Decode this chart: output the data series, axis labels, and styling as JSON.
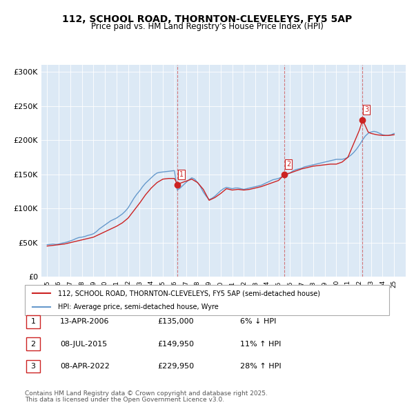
{
  "title_line1": "112, SCHOOL ROAD, THORNTON-CLEVELEYS, FY5 5AP",
  "title_line2": "Price paid vs. HM Land Registry's House Price Index (HPI)",
  "ylabel": "",
  "xlabel": "",
  "background_color": "#dce9f5",
  "plot_bg_color": "#dce9f5",
  "red_line_label": "112, SCHOOL ROAD, THORNTON-CLEVELEYS, FY5 5AP (semi-detached house)",
  "blue_line_label": "HPI: Average price, semi-detached house, Wyre",
  "transactions": [
    {
      "num": 1,
      "date": "13-APR-2006",
      "price": 135000,
      "pct": "6%",
      "dir": "↓",
      "x_year": 2006.28
    },
    {
      "num": 2,
      "date": "08-JUL-2015",
      "price": 149950,
      "pct": "11%",
      "dir": "↑",
      "x_year": 2015.52
    },
    {
      "num": 3,
      "date": "08-APR-2022",
      "price": 229950,
      "pct": "28%",
      "dir": "↑",
      "x_year": 2022.27
    }
  ],
  "footer_line1": "Contains HM Land Registry data © Crown copyright and database right 2025.",
  "footer_line2": "This data is licensed under the Open Government Licence v3.0.",
  "ylim": [
    0,
    310000
  ],
  "xlim": [
    1994.5,
    2026.0
  ],
  "yticks": [
    0,
    50000,
    100000,
    150000,
    200000,
    250000,
    300000
  ],
  "ytick_labels": [
    "£0",
    "£50K",
    "£100K",
    "£150K",
    "£200K",
    "£250K",
    "£300K"
  ],
  "hpi_data": {
    "years": [
      1995.0,
      1995.25,
      1995.5,
      1995.75,
      1996.0,
      1996.25,
      1996.5,
      1996.75,
      1997.0,
      1997.25,
      1997.5,
      1997.75,
      1998.0,
      1998.25,
      1998.5,
      1998.75,
      1999.0,
      1999.25,
      1999.5,
      1999.75,
      2000.0,
      2000.25,
      2000.5,
      2000.75,
      2001.0,
      2001.25,
      2001.5,
      2001.75,
      2002.0,
      2002.25,
      2002.5,
      2002.75,
      2003.0,
      2003.25,
      2003.5,
      2003.75,
      2004.0,
      2004.25,
      2004.5,
      2004.75,
      2005.0,
      2005.25,
      2005.5,
      2005.75,
      2006.0,
      2006.25,
      2006.5,
      2006.75,
      2007.0,
      2007.25,
      2007.5,
      2007.75,
      2008.0,
      2008.25,
      2008.5,
      2008.75,
      2009.0,
      2009.25,
      2009.5,
      2009.75,
      2010.0,
      2010.25,
      2010.5,
      2010.75,
      2011.0,
      2011.25,
      2011.5,
      2011.75,
      2012.0,
      2012.25,
      2012.5,
      2012.75,
      2013.0,
      2013.25,
      2013.5,
      2013.75,
      2014.0,
      2014.25,
      2014.5,
      2014.75,
      2015.0,
      2015.25,
      2015.5,
      2015.75,
      2016.0,
      2016.25,
      2016.5,
      2016.75,
      2017.0,
      2017.25,
      2017.5,
      2017.75,
      2018.0,
      2018.25,
      2018.5,
      2018.75,
      2019.0,
      2019.25,
      2019.5,
      2019.75,
      2020.0,
      2020.25,
      2020.5,
      2020.75,
      2021.0,
      2021.25,
      2021.5,
      2021.75,
      2022.0,
      2022.25,
      2022.5,
      2022.75,
      2023.0,
      2023.25,
      2023.5,
      2023.75,
      2024.0,
      2024.25,
      2024.5,
      2024.75,
      2025.0
    ],
    "values": [
      47000,
      47500,
      48000,
      47500,
      48000,
      49000,
      50000,
      51000,
      52500,
      54000,
      56000,
      57500,
      58000,
      59000,
      60500,
      61500,
      63000,
      66000,
      70000,
      73000,
      76000,
      79000,
      82000,
      84000,
      86000,
      89000,
      92000,
      96000,
      101000,
      108000,
      115000,
      121000,
      126000,
      132000,
      137000,
      141000,
      145000,
      149000,
      152000,
      153000,
      153500,
      154000,
      154500,
      155000,
      155500,
      127000,
      130000,
      134000,
      138000,
      142000,
      145000,
      143000,
      138000,
      132000,
      124000,
      118000,
      113000,
      115000,
      118000,
      122000,
      126000,
      129000,
      131000,
      130000,
      129000,
      130000,
      130000,
      129000,
      128000,
      129000,
      130000,
      131000,
      132000,
      133000,
      134000,
      136000,
      138000,
      140000,
      142000,
      143000,
      144000,
      146000,
      148000,
      150000,
      152000,
      155000,
      157000,
      158000,
      159000,
      161000,
      162000,
      163000,
      164000,
      165000,
      166000,
      167000,
      168000,
      169000,
      170000,
      171000,
      172000,
      172000,
      172000,
      173000,
      175000,
      178000,
      182000,
      187000,
      193000,
      200000,
      206000,
      210000,
      212000,
      213000,
      212000,
      210000,
      208000,
      207000,
      207000,
      208000,
      210000
    ]
  },
  "red_data": {
    "years": [
      1995.0,
      1995.5,
      1996.0,
      1996.5,
      1997.0,
      1997.5,
      1998.0,
      1998.5,
      1999.0,
      1999.5,
      2000.0,
      2000.5,
      2001.0,
      2001.5,
      2002.0,
      2002.5,
      2003.0,
      2003.5,
      2004.0,
      2004.5,
      2005.0,
      2005.5,
      2006.0,
      2006.28,
      2006.5,
      2007.0,
      2007.5,
      2008.0,
      2008.5,
      2009.0,
      2009.5,
      2010.0,
      2010.5,
      2011.0,
      2011.5,
      2012.0,
      2012.5,
      2013.0,
      2013.5,
      2014.0,
      2014.5,
      2015.0,
      2015.52,
      2015.75,
      2016.0,
      2016.5,
      2017.0,
      2017.5,
      2018.0,
      2018.5,
      2019.0,
      2019.5,
      2020.0,
      2020.5,
      2021.0,
      2021.5,
      2022.0,
      2022.27,
      2022.75,
      2023.0,
      2023.5,
      2024.0,
      2024.5,
      2025.0
    ],
    "values": [
      45000,
      46000,
      47000,
      48000,
      50000,
      52000,
      54000,
      56000,
      58000,
      62000,
      66000,
      70000,
      74000,
      79000,
      86000,
      97000,
      108000,
      120000,
      130000,
      138000,
      143000,
      144000,
      144000,
      135000,
      137000,
      140000,
      143000,
      138000,
      128000,
      112000,
      116000,
      122000,
      129000,
      127000,
      128000,
      127000,
      128000,
      130000,
      132000,
      135000,
      138000,
      141000,
      149950,
      151000,
      152000,
      155000,
      158000,
      160000,
      162000,
      163000,
      164000,
      165000,
      165000,
      168000,
      175000,
      195000,
      215000,
      229950,
      212000,
      210000,
      208000,
      207000,
      207000,
      208000
    ]
  }
}
